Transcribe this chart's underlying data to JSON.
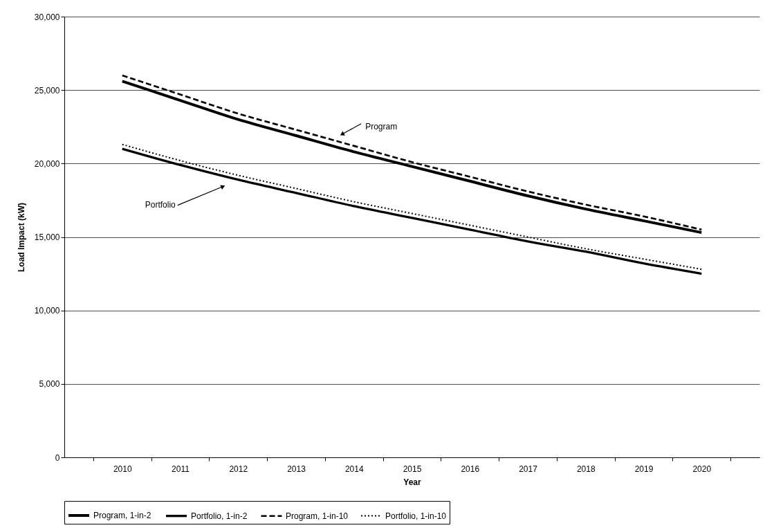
{
  "chart_data": {
    "type": "line",
    "xlabel": "Year",
    "ylabel": "Load Impact (kW)",
    "categories": [
      "2010",
      "2011",
      "2012",
      "2013",
      "2014",
      "2015",
      "2016",
      "2017",
      "2018",
      "2019",
      "2020"
    ],
    "series": [
      {
        "name": "Program, 1-in-2",
        "color": "#000000",
        "line_style": "solid",
        "values": [
          25600,
          24300,
          23000,
          21900,
          20800,
          19800,
          18800,
          17800,
          16900,
          16100,
          15300
        ]
      },
      {
        "name": "Portfolio, 1-in-2",
        "color": "#000000",
        "line_style": "solid",
        "values": [
          21000,
          19900,
          18900,
          18000,
          17100,
          16300,
          15500,
          14700,
          14000,
          13200,
          12500
        ]
      },
      {
        "name": "Program, 1-in-10",
        "color": "#000000",
        "line_style": "dashed",
        "values": [
          26000,
          24700,
          23400,
          22300,
          21200,
          20100,
          19100,
          18100,
          17200,
          16400,
          15500
        ]
      },
      {
        "name": "Portfolio, 1-in-10",
        "color": "#000000",
        "line_style": "dotted",
        "values": [
          21300,
          20200,
          19200,
          18300,
          17400,
          16600,
          15800,
          15000,
          14200,
          13500,
          12800
        ]
      }
    ],
    "ylim": [
      0,
      30000
    ],
    "yticks": [
      0,
      {
        "value": 5000,
        "label": "5,000"
      },
      {
        "value": 10000,
        "label": "10,000"
      },
      {
        "value": 15000,
        "label": "15,000"
      },
      {
        "value": 20000,
        "label": "20,000"
      },
      {
        "value": 25000,
        "label": "25,000"
      },
      {
        "value": 30000,
        "label": "30,000"
      }
    ],
    "grid": "y",
    "legend": "bottom",
    "marker": "none",
    "annotations": [
      "Program",
      "Portfolio"
    ]
  }
}
